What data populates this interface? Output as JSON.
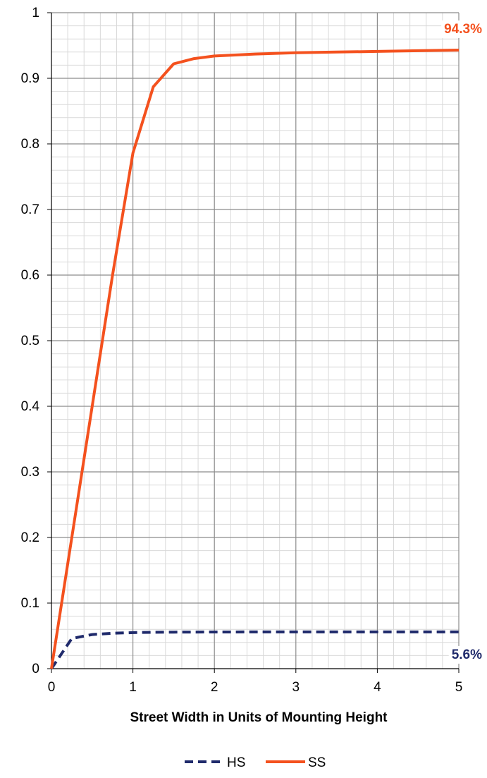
{
  "chart_data": {
    "type": "line",
    "xlabel": "Street Width in Units of Mounting Height",
    "ylabel": "",
    "xlim": [
      0,
      5
    ],
    "ylim": [
      0,
      1
    ],
    "x_ticks": [
      "0",
      "1",
      "2",
      "3",
      "4",
      "5"
    ],
    "y_ticks": [
      "0",
      "0.1",
      "0.2",
      "0.3",
      "0.4",
      "0.5",
      "0.6",
      "0.7",
      "0.8",
      "0.9",
      "1"
    ],
    "grid": true,
    "legend_position": "bottom",
    "series": [
      {
        "name": "HS",
        "color": "#1f2a6b",
        "dash": "dashed",
        "x": [
          0,
          0.25,
          0.5,
          0.75,
          1,
          1.25,
          1.5,
          1.75,
          2,
          2.5,
          3,
          3.5,
          4,
          4.5,
          5
        ],
        "y": [
          0,
          0.046,
          0.052,
          0.054,
          0.055,
          0.0555,
          0.0557,
          0.0558,
          0.0559,
          0.056,
          0.056,
          0.056,
          0.056,
          0.056,
          0.056
        ],
        "end_label": "5.6%"
      },
      {
        "name": "SS",
        "color": "#f4511e",
        "dash": "solid",
        "x": [
          0,
          0.25,
          0.5,
          0.75,
          1,
          1.25,
          1.5,
          1.75,
          2,
          2.5,
          3,
          3.5,
          4,
          4.5,
          5
        ],
        "y": [
          0,
          0.2,
          0.4,
          0.6,
          0.786,
          0.887,
          0.922,
          0.93,
          0.934,
          0.937,
          0.939,
          0.94,
          0.941,
          0.942,
          0.943
        ],
        "end_label": "94.3%"
      }
    ]
  }
}
